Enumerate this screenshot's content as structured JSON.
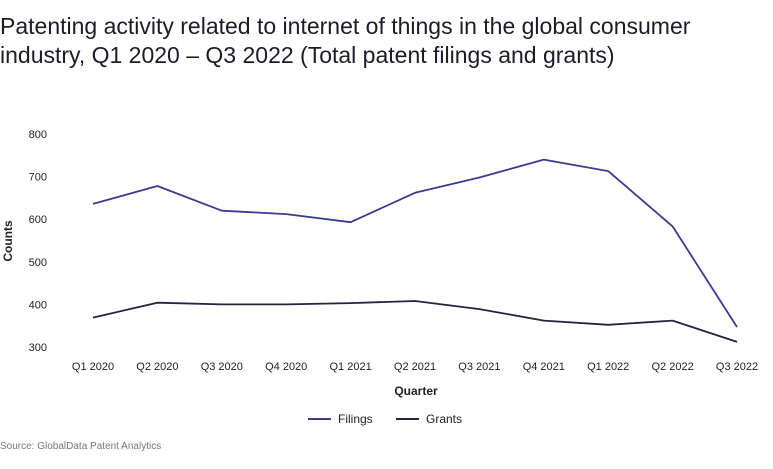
{
  "title": "Patenting activity related to internet of things in the global consumer industry, Q1 2020 – Q3 2022 (Total patent filings and grants)",
  "source": "Source: GlobalData Patent Analytics",
  "chart_data": {
    "type": "line",
    "title": "Patenting activity related to internet of things in the global consumer industry, Q1 2020 – Q3 2022 (Total patent filings and grants)",
    "xlabel": "Quarter",
    "ylabel": "Counts",
    "categories": [
      "Q1 2020",
      "Q2 2020",
      "Q3 2020",
      "Q4 2020",
      "Q1 2021",
      "Q2 2021",
      "Q3 2021",
      "Q4 2021",
      "Q1 2022",
      "Q2 2022",
      "Q3 2022"
    ],
    "ylim": [
      300,
      800
    ],
    "yticks": [
      300,
      400,
      500,
      600,
      700,
      800
    ],
    "grid": false,
    "legend": "bottom-center",
    "series": [
      {
        "name": "Filings",
        "color": "#3b3b8f",
        "values": [
          636,
          678,
          620,
          612,
          593,
          662,
          698,
          740,
          713,
          583,
          347
        ]
      },
      {
        "name": "Grants",
        "color": "#26233f",
        "values": [
          369,
          404,
          400,
          400,
          403,
          408,
          389,
          362,
          352,
          362,
          312
        ]
      }
    ]
  }
}
